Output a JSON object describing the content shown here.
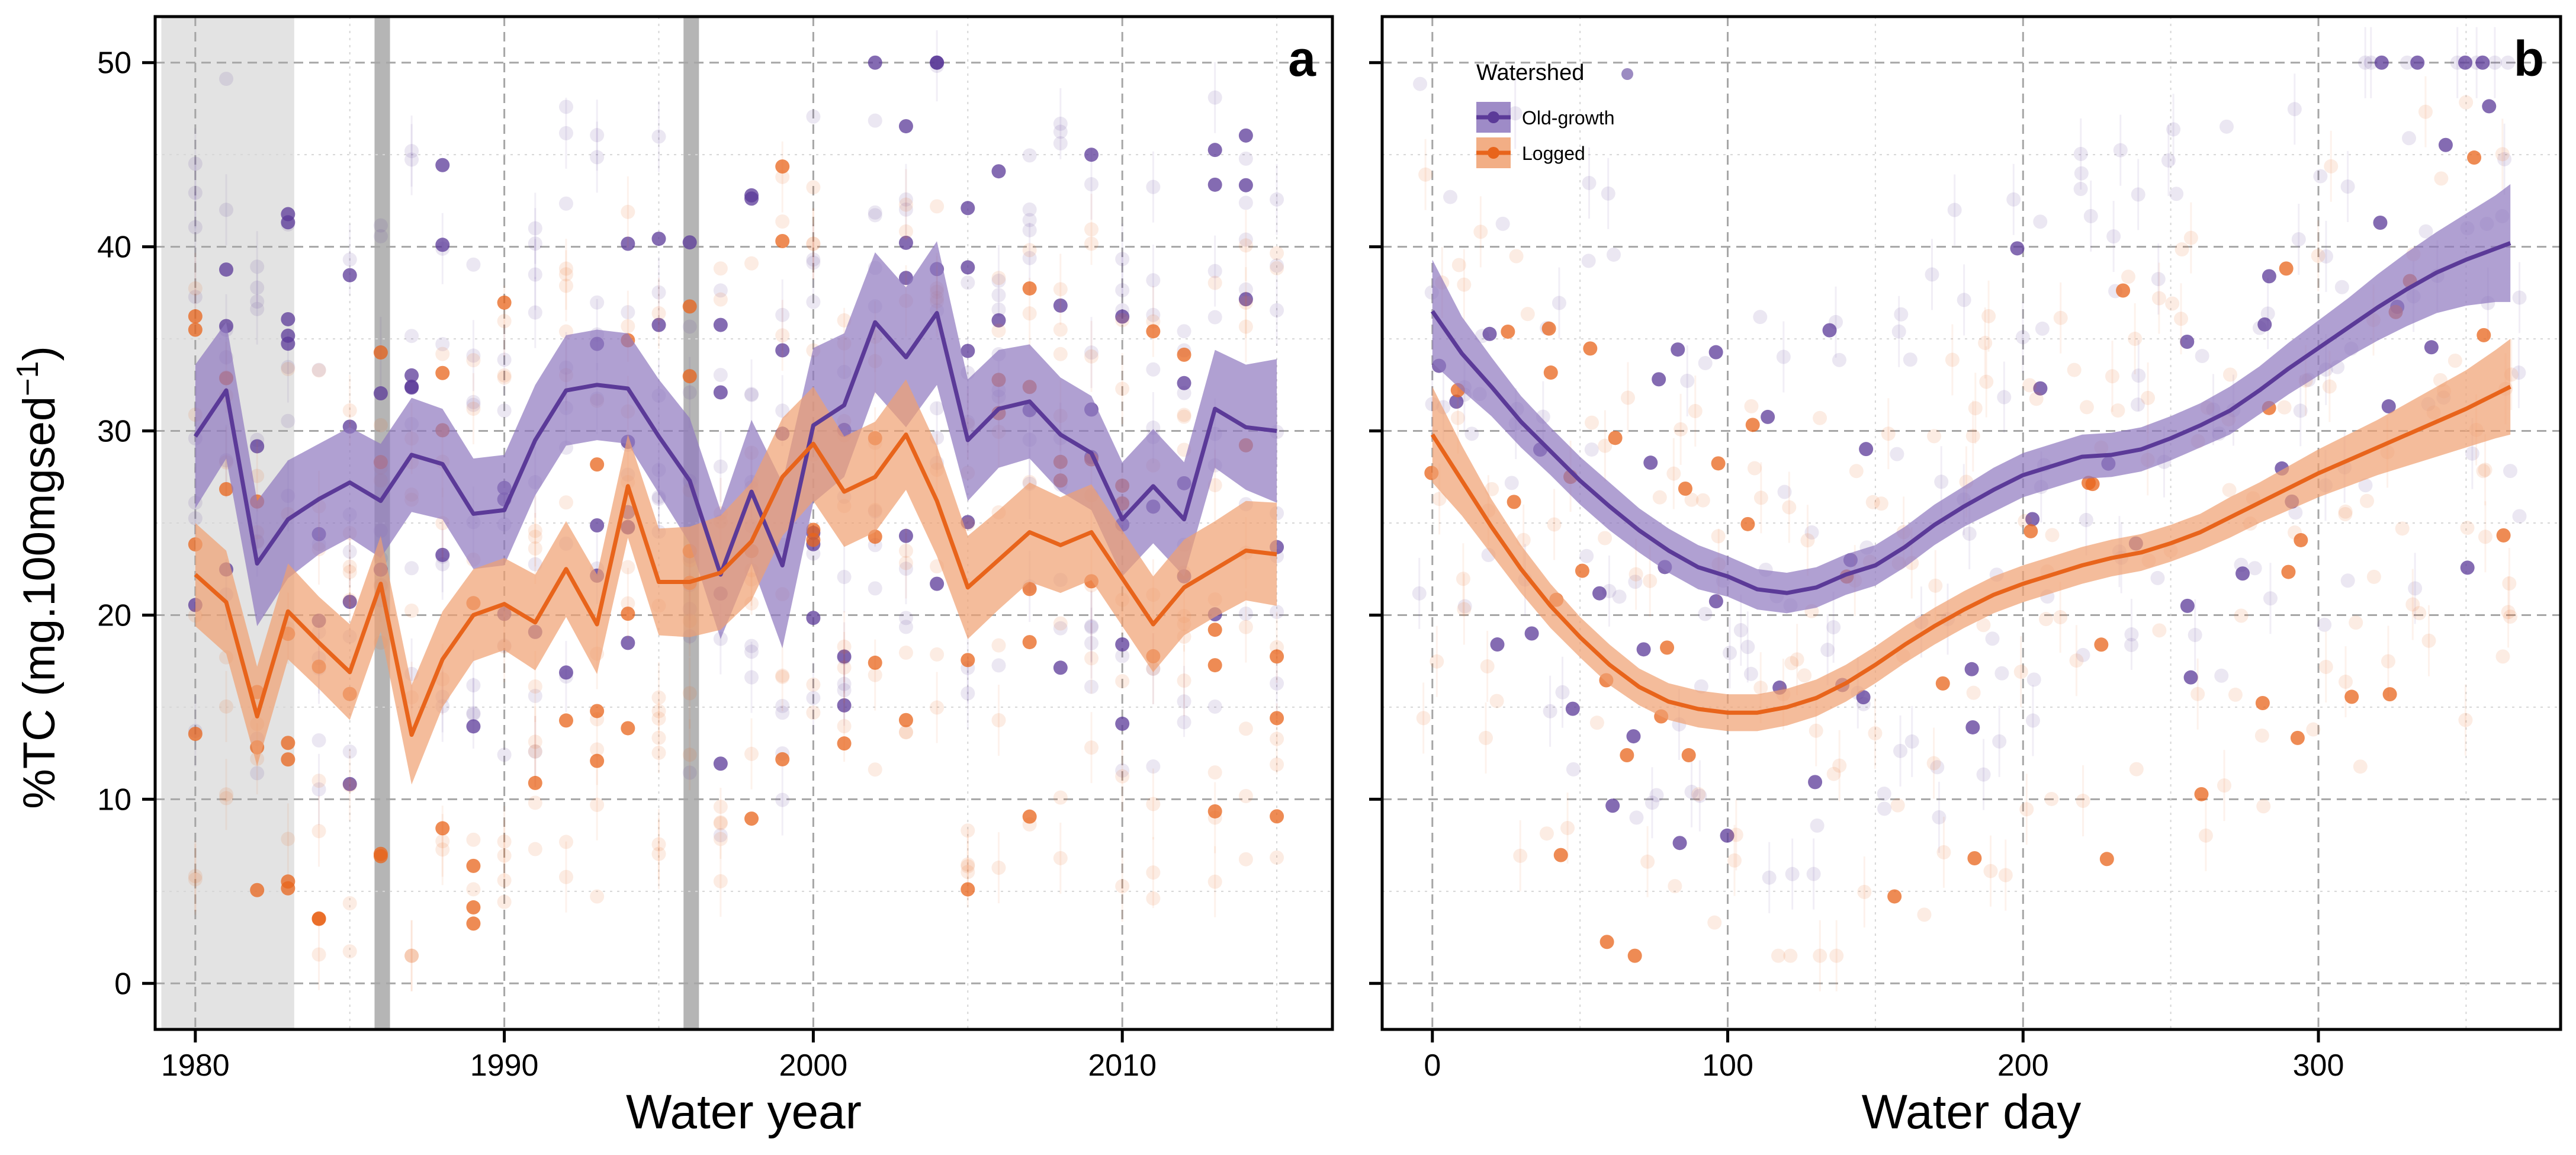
{
  "figure": {
    "ylabel": "%TC (mg.100mgsed",
    "ylabel_sup": "−1",
    "ylabel_close": ")",
    "legend": {
      "title": "Watershed",
      "items": [
        "Old-growth",
        "Logged"
      ]
    }
  },
  "chart_data": [
    {
      "type": "line",
      "panel_label": "a",
      "xlabel": "Water year",
      "ylabel": "%TC (mg.100mgsed−1)",
      "xlim": [
        1978.7,
        2016.8
      ],
      "ylim": [
        -2.5,
        52.5
      ],
      "xticks": [
        1980,
        1990,
        2000,
        2010
      ],
      "yticks": [
        0,
        10,
        20,
        30,
        40,
        50
      ],
      "grid": true,
      "shaded_spans": [
        {
          "x": [
            1978.9,
            1983.2
          ],
          "color": "#e3e3e3"
        },
        {
          "x": [
            1985.8,
            1986.3
          ],
          "color": "#b5b5b5"
        },
        {
          "x": [
            1995.8,
            1996.3
          ],
          "color": "#b5b5b5"
        }
      ],
      "series": [
        {
          "name": "Old-growth",
          "color": "#5b3a98",
          "x": [
            1980,
            1981,
            1982,
            1983,
            1984,
            1985,
            1986,
            1987,
            1988,
            1989,
            1990,
            1991,
            1992,
            1993,
            1994,
            1995,
            1996,
            1997,
            1998,
            1999,
            2000,
            2001,
            2002,
            2003,
            2004,
            2005,
            2006,
            2007,
            2008,
            2009,
            2010,
            2011,
            2012,
            2013,
            2014,
            2015
          ],
          "y": [
            29.7,
            32.2,
            22.8,
            25.2,
            26.3,
            27.2,
            26.2,
            28.7,
            28.2,
            25.5,
            25.7,
            29.5,
            32.2,
            32.5,
            32.3,
            29.7,
            27.3,
            22.2,
            26.7,
            22.7,
            30.3,
            31.4,
            35.9,
            34.0,
            36.4,
            29.5,
            31.2,
            31.6,
            29.8,
            28.8,
            25.2,
            27.0,
            25.2,
            31.2,
            30.2,
            30.0
          ],
          "ci_halfwidth": [
            3.9,
            3.7,
            3.4,
            3.2,
            3.0,
            3.0,
            3.1,
            3.1,
            3.0,
            3.0,
            3.0,
            3.0,
            3.0,
            3.0,
            3.0,
            3.1,
            3.4,
            3.5,
            3.9,
            4.5,
            4.2,
            3.9,
            3.8,
            3.8,
            3.9,
            3.3,
            3.2,
            3.1,
            3.1,
            3.1,
            3.1,
            3.1,
            3.1,
            3.2,
            3.4,
            3.9
          ]
        },
        {
          "name": "Logged",
          "color": "#e8641b",
          "x": [
            1980,
            1981,
            1982,
            1983,
            1984,
            1985,
            1986,
            1987,
            1988,
            1989,
            1990,
            1991,
            1992,
            1993,
            1994,
            1995,
            1996,
            1997,
            1998,
            1999,
            2000,
            2001,
            2002,
            2003,
            2004,
            2005,
            2006,
            2007,
            2008,
            2009,
            2010,
            2011,
            2012,
            2013,
            2014,
            2015
          ],
          "y": [
            22.2,
            20.7,
            14.5,
            20.2,
            18.5,
            16.9,
            21.7,
            13.5,
            17.6,
            20.0,
            20.6,
            19.6,
            22.5,
            19.5,
            27.0,
            21.8,
            21.8,
            22.3,
            24.0,
            27.5,
            29.3,
            26.7,
            27.5,
            29.8,
            26.2,
            21.5,
            23.0,
            24.5,
            23.8,
            24.5,
            22.0,
            19.5,
            21.5,
            22.5,
            23.5,
            23.3
          ],
          "ci_halfwidth": [
            2.8,
            2.8,
            2.7,
            2.6,
            2.5,
            2.6,
            2.6,
            2.7,
            2.6,
            2.5,
            2.5,
            2.6,
            2.6,
            2.7,
            2.8,
            2.9,
            3.0,
            3.1,
            3.2,
            3.2,
            3.1,
            3.0,
            3.0,
            3.0,
            3.0,
            2.8,
            2.7,
            2.7,
            2.6,
            2.6,
            2.6,
            2.6,
            2.6,
            2.6,
            2.7,
            2.8
          ]
        }
      ]
    },
    {
      "type": "line",
      "panel_label": "b",
      "xlabel": "Water day",
      "ylabel": "%TC (mg.100mgsed−1)",
      "xlim": [
        -17,
        382
      ],
      "ylim": [
        -2.5,
        52.5
      ],
      "xticks": [
        0,
        100,
        200,
        300
      ],
      "yticks": [
        0,
        10,
        20,
        30,
        40,
        50
      ],
      "grid": true,
      "legend_position": "top-left",
      "series": [
        {
          "name": "Old-growth",
          "color": "#5b3a98",
          "x": [
            0,
            10,
            20,
            30,
            40,
            50,
            60,
            70,
            80,
            90,
            100,
            110,
            120,
            130,
            140,
            150,
            160,
            170,
            180,
            190,
            200,
            210,
            220,
            230,
            240,
            250,
            260,
            270,
            280,
            290,
            300,
            310,
            320,
            330,
            340,
            350,
            360,
            365
          ],
          "y": [
            36.5,
            34.2,
            32.4,
            30.5,
            28.9,
            27.3,
            25.9,
            24.6,
            23.5,
            22.6,
            22.1,
            21.4,
            21.2,
            21.5,
            22.2,
            22.7,
            23.7,
            24.9,
            25.9,
            26.8,
            27.6,
            28.1,
            28.6,
            28.7,
            29.0,
            29.6,
            30.3,
            31.1,
            32.2,
            33.4,
            34.5,
            35.6,
            36.7,
            37.7,
            38.6,
            39.3,
            39.9,
            40.2
          ],
          "ci_halfwidth": [
            2.8,
            2.0,
            1.6,
            1.4,
            1.3,
            1.3,
            1.3,
            1.2,
            1.2,
            1.2,
            1.1,
            1.1,
            1.1,
            1.1,
            1.1,
            1.1,
            1.1,
            1.1,
            1.1,
            1.2,
            1.2,
            1.2,
            1.2,
            1.2,
            1.2,
            1.2,
            1.2,
            1.3,
            1.3,
            1.4,
            1.5,
            1.6,
            1.8,
            2.0,
            2.2,
            2.5,
            2.9,
            3.2
          ]
        },
        {
          "name": "Logged",
          "color": "#e8641b",
          "x": [
            0,
            10,
            20,
            30,
            40,
            50,
            60,
            70,
            80,
            90,
            100,
            110,
            120,
            130,
            140,
            150,
            160,
            170,
            180,
            190,
            200,
            210,
            220,
            230,
            240,
            250,
            260,
            270,
            280,
            290,
            300,
            310,
            320,
            330,
            340,
            350,
            360,
            365
          ],
          "y": [
            29.8,
            27.3,
            24.8,
            22.5,
            20.5,
            18.8,
            17.3,
            16.1,
            15.3,
            14.9,
            14.7,
            14.7,
            15.0,
            15.5,
            16.3,
            17.3,
            18.4,
            19.4,
            20.3,
            21.1,
            21.7,
            22.2,
            22.7,
            23.1,
            23.4,
            23.9,
            24.5,
            25.3,
            26.1,
            26.9,
            27.7,
            28.4,
            29.1,
            29.8,
            30.5,
            31.2,
            32.0,
            32.4
          ],
          "ci_halfwidth": [
            2.6,
            1.9,
            1.5,
            1.3,
            1.2,
            1.1,
            1.1,
            1.0,
            1.0,
            1.0,
            1.0,
            1.0,
            1.0,
            1.0,
            1.0,
            1.0,
            1.0,
            1.0,
            1.0,
            1.0,
            1.0,
            1.0,
            1.0,
            1.0,
            1.0,
            1.0,
            1.0,
            1.1,
            1.1,
            1.2,
            1.3,
            1.4,
            1.5,
            1.7,
            1.9,
            2.1,
            2.4,
            2.6
          ]
        }
      ]
    }
  ]
}
